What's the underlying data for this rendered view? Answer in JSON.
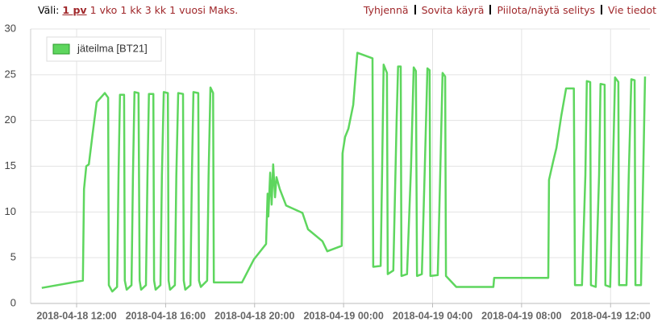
{
  "toolbar": {
    "label": "Väli:",
    "ranges": [
      "1 pv",
      "1 vko",
      "1 kk",
      "3 kk",
      "1 vuosi",
      "Maks."
    ],
    "active": 0,
    "actions": [
      "Tyhjennä",
      "Sovita käyrä",
      "Piilota/näytä selitys",
      "Vie tiedot"
    ]
  },
  "chart_data": {
    "type": "line",
    "legend": "upper left",
    "grid": true,
    "xlim": [
      "2018-04-18 09:56",
      "2018-04-19 13:46"
    ],
    "xticks": [
      "2018-04-18 12:00",
      "2018-04-18 16:00",
      "2018-04-18 20:00",
      "2018-04-19 00:00",
      "2018-04-19 04:00",
      "2018-04-19 08:00",
      "2018-04-19 12:00"
    ],
    "ylim": [
      0,
      30
    ],
    "yticks": [
      0,
      5,
      10,
      15,
      20,
      25,
      30
    ],
    "x": [
      "2018-04-18 10:26",
      "2018-04-18 12:17",
      "2018-04-18 12:20",
      "2018-04-18 12:26",
      "2018-04-18 12:33",
      "2018-04-18 12:43",
      "2018-04-18 12:54",
      "2018-04-18 13:16",
      "2018-04-18 13:25",
      "2018-04-18 13:27",
      "2018-04-18 13:36",
      "2018-04-18 13:49",
      "2018-04-18 13:53",
      "2018-04-18 13:57",
      "2018-04-18 14:08",
      "2018-04-18 14:10",
      "2018-04-18 14:15",
      "2018-04-18 14:28",
      "2018-04-18 14:32",
      "2018-04-18 14:36",
      "2018-04-18 14:47",
      "2018-04-18 14:50",
      "2018-04-18 14:54",
      "2018-04-18 15:07",
      "2018-04-18 15:11",
      "2018-04-18 15:15",
      "2018-04-18 15:27",
      "2018-04-18 15:29",
      "2018-04-18 15:33",
      "2018-04-18 15:46",
      "2018-04-18 15:50",
      "2018-04-18 15:55",
      "2018-04-18 16:06",
      "2018-04-18 16:08",
      "2018-04-18 16:12",
      "2018-04-18 16:25",
      "2018-04-18 16:29",
      "2018-04-18 16:34",
      "2018-04-18 16:47",
      "2018-04-18 16:49",
      "2018-04-18 16:53",
      "2018-04-18 17:07",
      "2018-04-18 17:11",
      "2018-04-18 17:15",
      "2018-04-18 17:28",
      "2018-04-18 17:30",
      "2018-04-18 17:35",
      "2018-04-18 17:52",
      "2018-04-18 17:56",
      "2018-04-18 18:01",
      "2018-04-18 18:08",
      "2018-04-18 18:10",
      "2018-04-18 19:26",
      "2018-04-18 19:58",
      "2018-04-18 20:31",
      "2018-04-18 20:35",
      "2018-04-18 20:37",
      "2018-04-18 20:42",
      "2018-04-18 20:46",
      "2018-04-18 20:50",
      "2018-04-18 20:55",
      "2018-04-18 20:59",
      "2018-04-18 21:08",
      "2018-04-18 21:25",
      "2018-04-18 22:09",
      "2018-04-18 22:24",
      "2018-04-18 23:03",
      "2018-04-18 23:16",
      "2018-04-18 23:55",
      "2018-04-18 23:57",
      "2018-04-19 00:04",
      "2018-04-19 00:13",
      "2018-04-19 00:26",
      "2018-04-19 00:37",
      "2018-04-19 01:18",
      "2018-04-19 01:20",
      "2018-04-19 01:40",
      "2018-04-19 01:44",
      "2018-04-19 01:48",
      "2018-04-19 01:57",
      "2018-04-19 01:59",
      "2018-04-19 02:14",
      "2018-04-19 02:23",
      "2018-04-19 02:27",
      "2018-04-19 02:34",
      "2018-04-19 02:36",
      "2018-04-19 02:51",
      "2018-04-19 03:02",
      "2018-04-19 03:09",
      "2018-04-19 03:15",
      "2018-04-19 03:18",
      "2018-04-19 03:31",
      "2018-04-19 03:39",
      "2018-04-19 03:46",
      "2018-04-19 03:52",
      "2018-04-19 03:54",
      "2018-04-19 04:14",
      "2018-04-19 04:21",
      "2018-04-19 04:27",
      "2018-04-19 04:34",
      "2018-04-19 04:36",
      "2018-04-19 05:04",
      "2018-04-19 06:44",
      "2018-04-19 06:46",
      "2018-04-19 09:12",
      "2018-04-19 09:14",
      "2018-04-19 09:25",
      "2018-04-19 09:34",
      "2018-04-19 09:47",
      "2018-04-19 10:00",
      "2018-04-19 10:21",
      "2018-04-19 10:24",
      "2018-04-19 10:43",
      "2018-04-19 10:52",
      "2018-04-19 10:56",
      "2018-04-19 11:05",
      "2018-04-19 11:07",
      "2018-04-19 11:20",
      "2018-04-19 11:29",
      "2018-04-19 11:33",
      "2018-04-19 11:44",
      "2018-04-19 11:46",
      "2018-04-19 11:59",
      "2018-04-19 12:06",
      "2018-04-19 12:12",
      "2018-04-19 12:21",
      "2018-04-19 12:23",
      "2018-04-19 12:43",
      "2018-04-19 12:49",
      "2018-04-19 12:56",
      "2018-04-19 13:05",
      "2018-04-19 13:07",
      "2018-04-19 13:22",
      "2018-04-19 13:28",
      "2018-04-19 13:33"
    ],
    "series": [
      {
        "name": "jäteilma [BT21]",
        "color": "#5ed65e",
        "values": [
          1.7,
          2.5,
          12.5,
          15,
          15.2,
          18.5,
          22,
          23,
          22.5,
          2,
          1.3,
          1.8,
          14,
          22.8,
          22.8,
          2.5,
          1.5,
          2,
          14,
          23.1,
          23,
          2.5,
          1.5,
          2,
          14,
          22.9,
          22.9,
          2.5,
          1.5,
          2,
          14,
          23.1,
          23,
          2.5,
          1.5,
          2,
          14,
          23,
          22.9,
          2.5,
          1.5,
          2,
          14,
          23.1,
          23,
          2.5,
          1.8,
          2.5,
          14,
          23.6,
          23,
          2.3,
          2.3,
          4.8,
          6.5,
          12,
          9.5,
          14.3,
          10.8,
          15.2,
          11.6,
          13.8,
          12.5,
          10.7,
          9.9,
          8.1,
          6.8,
          5.7,
          6.3,
          16.4,
          18.2,
          19.1,
          21.7,
          27.4,
          26.8,
          4,
          4.1,
          15,
          26.1,
          25.2,
          3.2,
          3.6,
          20,
          25.9,
          25.9,
          3,
          3.2,
          15,
          25.8,
          25.4,
          3,
          3.2,
          15,
          25.7,
          25.5,
          3,
          3.1,
          15,
          25.2,
          24.8,
          3,
          1.8,
          1.8,
          2.8,
          2.8,
          13.5,
          15.5,
          17,
          20.5,
          23.5,
          23.5,
          2,
          2,
          14,
          24.3,
          24.2,
          2,
          1.8,
          14,
          24,
          23.9,
          2,
          1.8,
          14,
          24.7,
          24.2,
          2,
          2,
          14,
          24.5,
          24.4,
          2,
          2,
          14,
          24.8
        ]
      }
    ]
  }
}
